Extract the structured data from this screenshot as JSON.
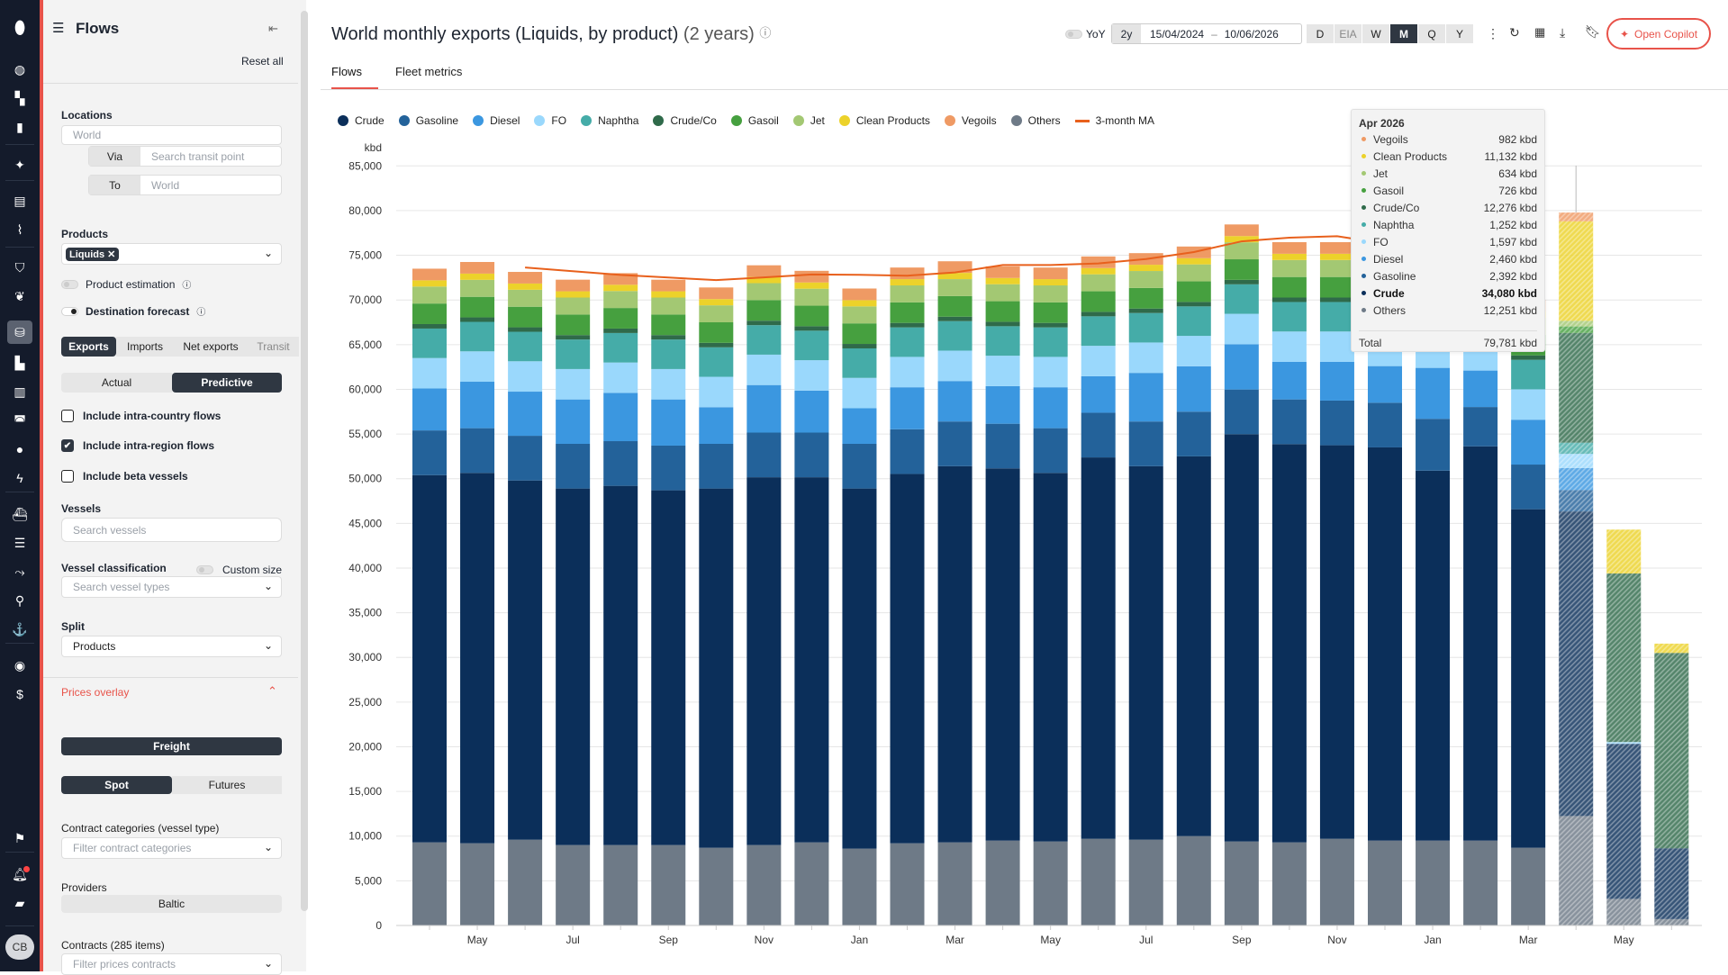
{
  "rail": {
    "items": [
      "logo-icon",
      "globe-icon",
      "dashboard-icon",
      "bookmark-icon",
      "sparkles-icon",
      "news-icon",
      "pulse-icon",
      "shield-icon",
      "leaf-icon",
      "flows-icon",
      "oil-icon",
      "bars-icon",
      "lng-icon",
      "flame-icon",
      "bolt-icon",
      "ship-icon",
      "list-icon",
      "route-icon",
      "vessel-search-icon",
      "anchor-icon",
      "eye-icon",
      "dollar-icon",
      "flag-icon",
      "bell-icon",
      "chat-icon"
    ],
    "avatar": "CB"
  },
  "sidebar": {
    "title": "Flows",
    "reset": "Reset all",
    "locations_label": "Locations",
    "locations_placeholder": "World",
    "via_label": "Via",
    "via_placeholder": "Search transit point",
    "to_label": "To",
    "to_placeholder": "World",
    "products_label": "Products",
    "product_chip": "Liquids",
    "product_estimation": "Product estimation",
    "product_estimation_on": false,
    "destination_forecast": "Destination forecast",
    "destination_forecast_on": true,
    "direction_tabs": [
      "Exports",
      "Imports",
      "Net exports",
      "Transit"
    ],
    "direction_selected": "Exports",
    "mode_tabs": [
      "Actual",
      "Predictive"
    ],
    "mode_selected": "Predictive",
    "checks": [
      {
        "label": "Include intra-country flows",
        "checked": false
      },
      {
        "label": "Include intra-region flows",
        "checked": true
      },
      {
        "label": "Include beta vessels",
        "checked": false
      }
    ],
    "vessels_label": "Vessels",
    "vessels_placeholder": "Search vessels",
    "vessel_class_label": "Vessel classification",
    "custom_size": "Custom size",
    "vessel_types_placeholder": "Search vessel types",
    "split_label": "Split",
    "split_value": "Products",
    "prices_overlay": "Prices overlay",
    "freight": "Freight",
    "price_tabs": [
      "Spot",
      "Futures"
    ],
    "contract_cat_label": "Contract categories (vessel type)",
    "contract_cat_placeholder": "Filter contract categories",
    "providers_label": "Providers",
    "provider": "Baltic",
    "contracts_label": "Contracts (285 items)",
    "contracts_placeholder": "Filter prices contracts"
  },
  "header": {
    "title": "World monthly exports (Liquids, by product)",
    "subtitle": "(2 years)",
    "yoy": "YoY",
    "range": "2y",
    "date_from": "15/04/2024",
    "date_sep": "–",
    "date_to": "10/06/2026",
    "periods": [
      "D",
      "EIA",
      "W",
      "M",
      "Q",
      "Y"
    ],
    "period_selected": "M",
    "copilot": "Open Copilot"
  },
  "tabs": [
    {
      "label": "Flows",
      "active": true
    },
    {
      "label": "Fleet metrics",
      "active": false
    }
  ],
  "chart_data": {
    "type": "bar",
    "stacked": true,
    "unit": "kbd",
    "ylim": [
      0,
      85000
    ],
    "ytick_step": 5000,
    "grid": true,
    "legend": "top-left",
    "yticks": [
      "0",
      "5,000",
      "10,000",
      "15,000",
      "20,000",
      "25,000",
      "30,000",
      "35,000",
      "40,000",
      "45,000",
      "50,000",
      "55,000",
      "60,000",
      "65,000",
      "70,000",
      "75,000",
      "80,000",
      "85,000"
    ],
    "categories": [
      "Apr 2024",
      "May 2024",
      "Jun 2024",
      "Jul 2024",
      "Aug 2024",
      "Sep 2024",
      "Oct 2024",
      "Nov 2024",
      "Dec 2024",
      "Jan 2025",
      "Feb 2025",
      "Mar 2025",
      "Apr 2025",
      "May 2025",
      "Jun 2025",
      "Jul 2025",
      "Aug 2025",
      "Sep 2025",
      "Oct 2025",
      "Nov 2025",
      "Dec 2025",
      "Jan 2026",
      "Feb 2026",
      "Mar 2026",
      "Apr 2026",
      "May 2026",
      "Jun 2026"
    ],
    "xtick_labels": [
      "",
      "May",
      "",
      "Jul",
      "",
      "Sep",
      "",
      "Nov",
      "",
      "Jan",
      "",
      "Mar",
      "",
      "May",
      "",
      "Jul",
      "",
      "Sep",
      "",
      "Nov",
      "",
      "Jan",
      "",
      "Mar",
      "",
      "May",
      ""
    ],
    "forecast_categories": [
      "Apr 2026",
      "May 2026",
      "Jun 2026"
    ],
    "series": [
      {
        "name": "Others",
        "color": "#6e7a87",
        "values": [
          9300,
          9200,
          9600,
          9000,
          9000,
          9000,
          8700,
          9000,
          9300,
          8600,
          9200,
          9300,
          9500,
          9400,
          9700,
          9600,
          10000,
          9400,
          9300,
          9700,
          9500,
          9500,
          9500,
          8700,
          12251,
          2980,
          720
        ]
      },
      {
        "name": "Crude",
        "color": "#0b2f5a",
        "values": [
          41100,
          41450,
          40200,
          39900,
          40200,
          39700,
          40200,
          41160,
          40860,
          40300,
          41330,
          42100,
          41650,
          41250,
          42680,
          41800,
          42500,
          45580,
          44570,
          44040,
          44000,
          41400,
          44120,
          37880,
          34080,
          17350,
          7920
        ]
      },
      {
        "name": "Gasoline",
        "color": "#23629a",
        "values": [
          5000,
          5000,
          5000,
          5000,
          5000,
          5000,
          5000,
          5000,
          5000,
          5000,
          5000,
          5000,
          5000,
          5000,
          5000,
          5000,
          5000,
          5000,
          5000,
          5000,
          5000,
          5800,
          4400,
          5000,
          2392,
          0,
          0
        ]
      },
      {
        "name": "Diesel",
        "color": "#3b97e0",
        "values": [
          4700,
          5200,
          4940,
          4970,
          5400,
          5170,
          4100,
          5320,
          4700,
          3980,
          4700,
          4530,
          4210,
          4580,
          4090,
          5440,
          5080,
          5070,
          4200,
          4330,
          4100,
          5700,
          4080,
          5020,
          2460,
          0,
          0
        ]
      },
      {
        "name": "FO",
        "color": "#9ad8fc",
        "values": [
          3400,
          3400,
          3400,
          3400,
          3400,
          3400,
          3400,
          3400,
          3400,
          3400,
          3400,
          3400,
          3400,
          3400,
          3400,
          3400,
          3400,
          3400,
          3400,
          3400,
          3400,
          3400,
          3400,
          3400,
          1597,
          200,
          0
        ]
      },
      {
        "name": "Naphtha",
        "color": "#45aca8",
        "values": [
          3300,
          3300,
          3300,
          3300,
          3300,
          3300,
          3300,
          3300,
          3300,
          3300,
          3300,
          3300,
          3300,
          3300,
          3300,
          3300,
          3300,
          3300,
          3300,
          3300,
          3300,
          3300,
          3300,
          3300,
          1252,
          0,
          0
        ]
      },
      {
        "name": "Crude/Co",
        "color": "#2f6a4a",
        "values": [
          500,
          500,
          500,
          500,
          500,
          500,
          500,
          500,
          500,
          500,
          500,
          500,
          500,
          500,
          500,
          500,
          500,
          500,
          500,
          500,
          500,
          500,
          500,
          500,
          12276,
          18860,
          21860
        ]
      },
      {
        "name": "Gasoil",
        "color": "#46a03f",
        "values": [
          2300,
          2300,
          2300,
          2300,
          2300,
          2300,
          2300,
          2300,
          2300,
          2300,
          2300,
          2300,
          2300,
          2300,
          2300,
          2300,
          2300,
          2300,
          2300,
          2300,
          2300,
          2300,
          2300,
          2300,
          726,
          0,
          0
        ]
      },
      {
        "name": "Jet",
        "color": "#a3c873",
        "values": [
          1900,
          1900,
          1900,
          1900,
          1900,
          1900,
          1900,
          1900,
          1900,
          1900,
          1900,
          1900,
          1900,
          1900,
          1900,
          1900,
          1900,
          1900,
          1900,
          1900,
          1900,
          1900,
          1900,
          1900,
          634,
          0,
          0
        ]
      },
      {
        "name": "Clean Products",
        "color": "#ecd22a",
        "values": [
          700,
          700,
          700,
          700,
          700,
          700,
          700,
          700,
          700,
          700,
          700,
          700,
          700,
          700,
          700,
          700,
          700,
          700,
          700,
          700,
          700,
          700,
          700,
          700,
          11132,
          4910,
          1040
        ]
      },
      {
        "name": "Vegoils",
        "color": "#ef9a64",
        "values": [
          1300,
          1300,
          1300,
          1300,
          1300,
          1300,
          1300,
          1300,
          1300,
          1300,
          1300,
          1300,
          1300,
          1300,
          1300,
          1300,
          1300,
          1300,
          1300,
          1300,
          1300,
          1300,
          1300,
          1300,
          982,
          0,
          0
        ]
      }
    ],
    "moving_average": {
      "name": "3-month MA",
      "color": "#e8601c",
      "values": [
        null,
        null,
        73630,
        73220,
        72800,
        72510,
        72220,
        72520,
        72850,
        72810,
        72720,
        73080,
        73910,
        73910,
        74090,
        74580,
        75360,
        76560,
        76970,
        77130,
        76310,
        76090,
        75770,
        73770,
        null,
        null,
        null
      ]
    },
    "legend_order": [
      "Crude",
      "Gasoline",
      "Diesel",
      "FO",
      "Naphtha",
      "Crude/Co",
      "Gasoil",
      "Jet",
      "Clean Products",
      "Vegoils",
      "Others",
      "3-month MA"
    ]
  },
  "tooltip": {
    "title": "Apr 2026",
    "rows": [
      {
        "name": "Vegoils",
        "value": "982 kbd",
        "color": "#ef9a64"
      },
      {
        "name": "Clean Products",
        "value": "11,132 kbd",
        "color": "#ecd22a"
      },
      {
        "name": "Jet",
        "value": "634 kbd",
        "color": "#a3c873"
      },
      {
        "name": "Gasoil",
        "value": "726 kbd",
        "color": "#46a03f"
      },
      {
        "name": "Crude/Co",
        "value": "12,276 kbd",
        "color": "#2f6a4a"
      },
      {
        "name": "Naphtha",
        "value": "1,252 kbd",
        "color": "#45aca8"
      },
      {
        "name": "FO",
        "value": "1,597 kbd",
        "color": "#9ad8fc"
      },
      {
        "name": "Diesel",
        "value": "2,460 kbd",
        "color": "#3b97e0"
      },
      {
        "name": "Gasoline",
        "value": "2,392 kbd",
        "color": "#23629a"
      },
      {
        "name": "Crude",
        "value": "34,080 kbd",
        "color": "#0b2f5a",
        "bold": true
      },
      {
        "name": "Others",
        "value": "12,251 kbd",
        "color": "#6e7a87"
      }
    ],
    "total_label": "Total",
    "total_value": "79,781 kbd"
  }
}
